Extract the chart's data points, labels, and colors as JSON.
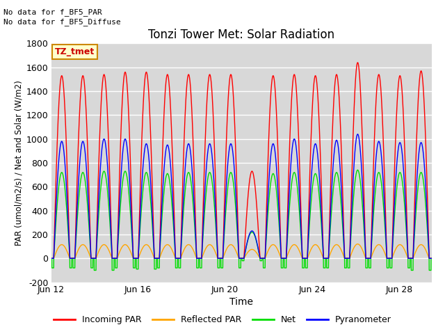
{
  "title": "Tonzi Tower Met: Solar Radiation",
  "xlabel": "Time",
  "ylabel": "PAR (umol/m2/s) / Net and Solar (W/m2)",
  "ylim": [
    -200,
    1800
  ],
  "total_days": 17.5,
  "xtick_labels": [
    "Jun 12",
    "Jun 16",
    "Jun 20",
    "Jun 24",
    "Jun 28"
  ],
  "xtick_positions": [
    0,
    4,
    8,
    12,
    16
  ],
  "plot_bg_color": "#d8d8d8",
  "fig_bg_color": "#ffffff",
  "grid_color": "#ffffff",
  "colors": {
    "incoming_par": "#ff0000",
    "reflected_par": "#ffa500",
    "net": "#00dd00",
    "pyranometer": "#0000ff"
  },
  "legend_labels": [
    "Incoming PAR",
    "Reflected PAR",
    "Net",
    "Pyranometer"
  ],
  "annotation_lines": [
    "No data for f_BF5_PAR",
    "No data for f_BF5_Diffuse"
  ],
  "legend_box_label": "TZ_tmet",
  "legend_box_color": "#ffffcc",
  "legend_box_border": "#cc8800",
  "n_cycles": 18,
  "incoming_par_peaks": [
    1530,
    1530,
    1540,
    1560,
    1560,
    1540,
    1540,
    1540,
    1540,
    730,
    1530,
    1540,
    1530,
    1540,
    1640,
    1540,
    1530,
    1570
  ],
  "pyranometer_peaks": [
    980,
    980,
    1000,
    1000,
    960,
    950,
    960,
    960,
    960,
    230,
    960,
    1000,
    960,
    990,
    1040,
    980,
    970,
    970
  ],
  "net_peaks": [
    720,
    720,
    730,
    730,
    720,
    710,
    720,
    720,
    720,
    220,
    710,
    720,
    710,
    720,
    740,
    720,
    720,
    720
  ],
  "reflected_par_peaks": [
    115,
    115,
    115,
    115,
    115,
    115,
    115,
    115,
    115,
    75,
    115,
    115,
    115,
    115,
    120,
    115,
    115,
    115
  ],
  "net_troughs": [
    -80,
    -80,
    -100,
    -80,
    -90,
    -80,
    -80,
    -80,
    -80,
    -20,
    -80,
    -80,
    -80,
    -80,
    -80,
    -80,
    -80,
    -100
  ]
}
